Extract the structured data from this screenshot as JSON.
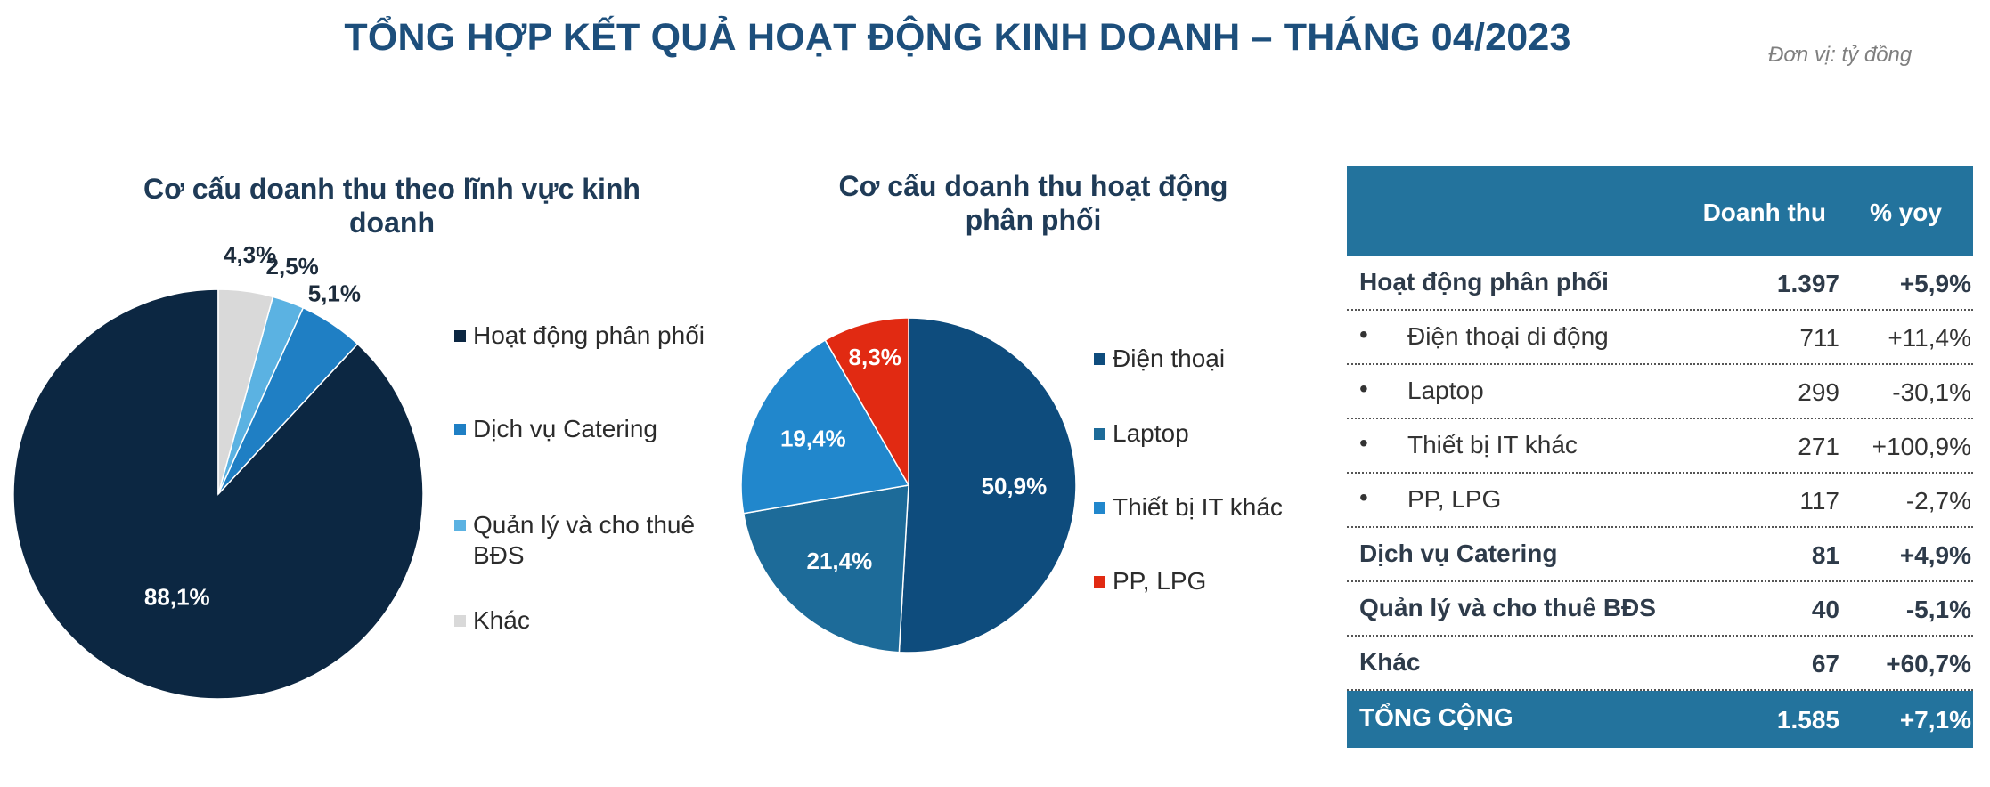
{
  "page": {
    "title": "TỔNG HỢP KẾT QUẢ HOẠT ĐỘNG KINH DOANH – THÁNG 04/2023",
    "unit_note": "Đơn vị: tỷ đồng"
  },
  "chart_data": [
    {
      "type": "pie",
      "title": "Cơ cấu doanh thu theo lĩnh vực kinh doanh",
      "categories": [
        "Hoạt động phân phối",
        "Dịch vụ Catering",
        "Quản lý và cho thuê BĐS",
        "Khác"
      ],
      "values": [
        88.1,
        5.1,
        2.5,
        4.3
      ],
      "labels": [
        "88,1%",
        "5,1%",
        "2,5%",
        "4,3%"
      ],
      "colors": [
        "#0c2742",
        "#1f7fc4",
        "#5bb2e2",
        "#d9d9d9"
      ],
      "legend_position": "right"
    },
    {
      "type": "pie",
      "title": "Cơ cấu doanh thu hoạt động phân phối",
      "categories": [
        "Điện thoại",
        "Laptop",
        "Thiết bị IT khác",
        "PP, LPG"
      ],
      "values": [
        50.9,
        21.4,
        19.4,
        8.3
      ],
      "labels": [
        "50,9%",
        "21,4%",
        "19,4%",
        "8,3%"
      ],
      "colors": [
        "#0e4c7d",
        "#1d6b99",
        "#2187cc",
        "#e12a12"
      ],
      "legend_position": "right"
    }
  ],
  "table": {
    "headers": {
      "revenue": "Doanh thu",
      "yoy": "% yoy"
    },
    "rows": [
      {
        "name": "Hoạt động phân phối",
        "revenue": "1.397",
        "yoy": "+5,9%",
        "style": "bold"
      },
      {
        "name": "Điện thoại di động",
        "revenue": "711",
        "yoy": "+11,4%",
        "style": "sub"
      },
      {
        "name": "Laptop",
        "revenue": "299",
        "yoy": "-30,1%",
        "style": "sub"
      },
      {
        "name": "Thiết bị IT khác",
        "revenue": "271",
        "yoy": "+100,9%",
        "style": "sub"
      },
      {
        "name": "PP, LPG",
        "revenue": "117",
        "yoy": "-2,7%",
        "style": "sub"
      },
      {
        "name": "Dịch vụ Catering",
        "revenue": "81",
        "yoy": "+4,9%",
        "style": "bold"
      },
      {
        "name": "Quản lý và cho thuê BĐS",
        "revenue": "40",
        "yoy": "-5,1%",
        "style": "bold"
      },
      {
        "name": "Khác",
        "revenue": "67",
        "yoy": "+60,7%",
        "style": "bold"
      }
    ],
    "total": {
      "name": "TỔNG CỘNG",
      "revenue": "1.585",
      "yoy": "+7,1%"
    },
    "bullet": "•",
    "colors": {
      "header_bg": "#23739d"
    }
  }
}
